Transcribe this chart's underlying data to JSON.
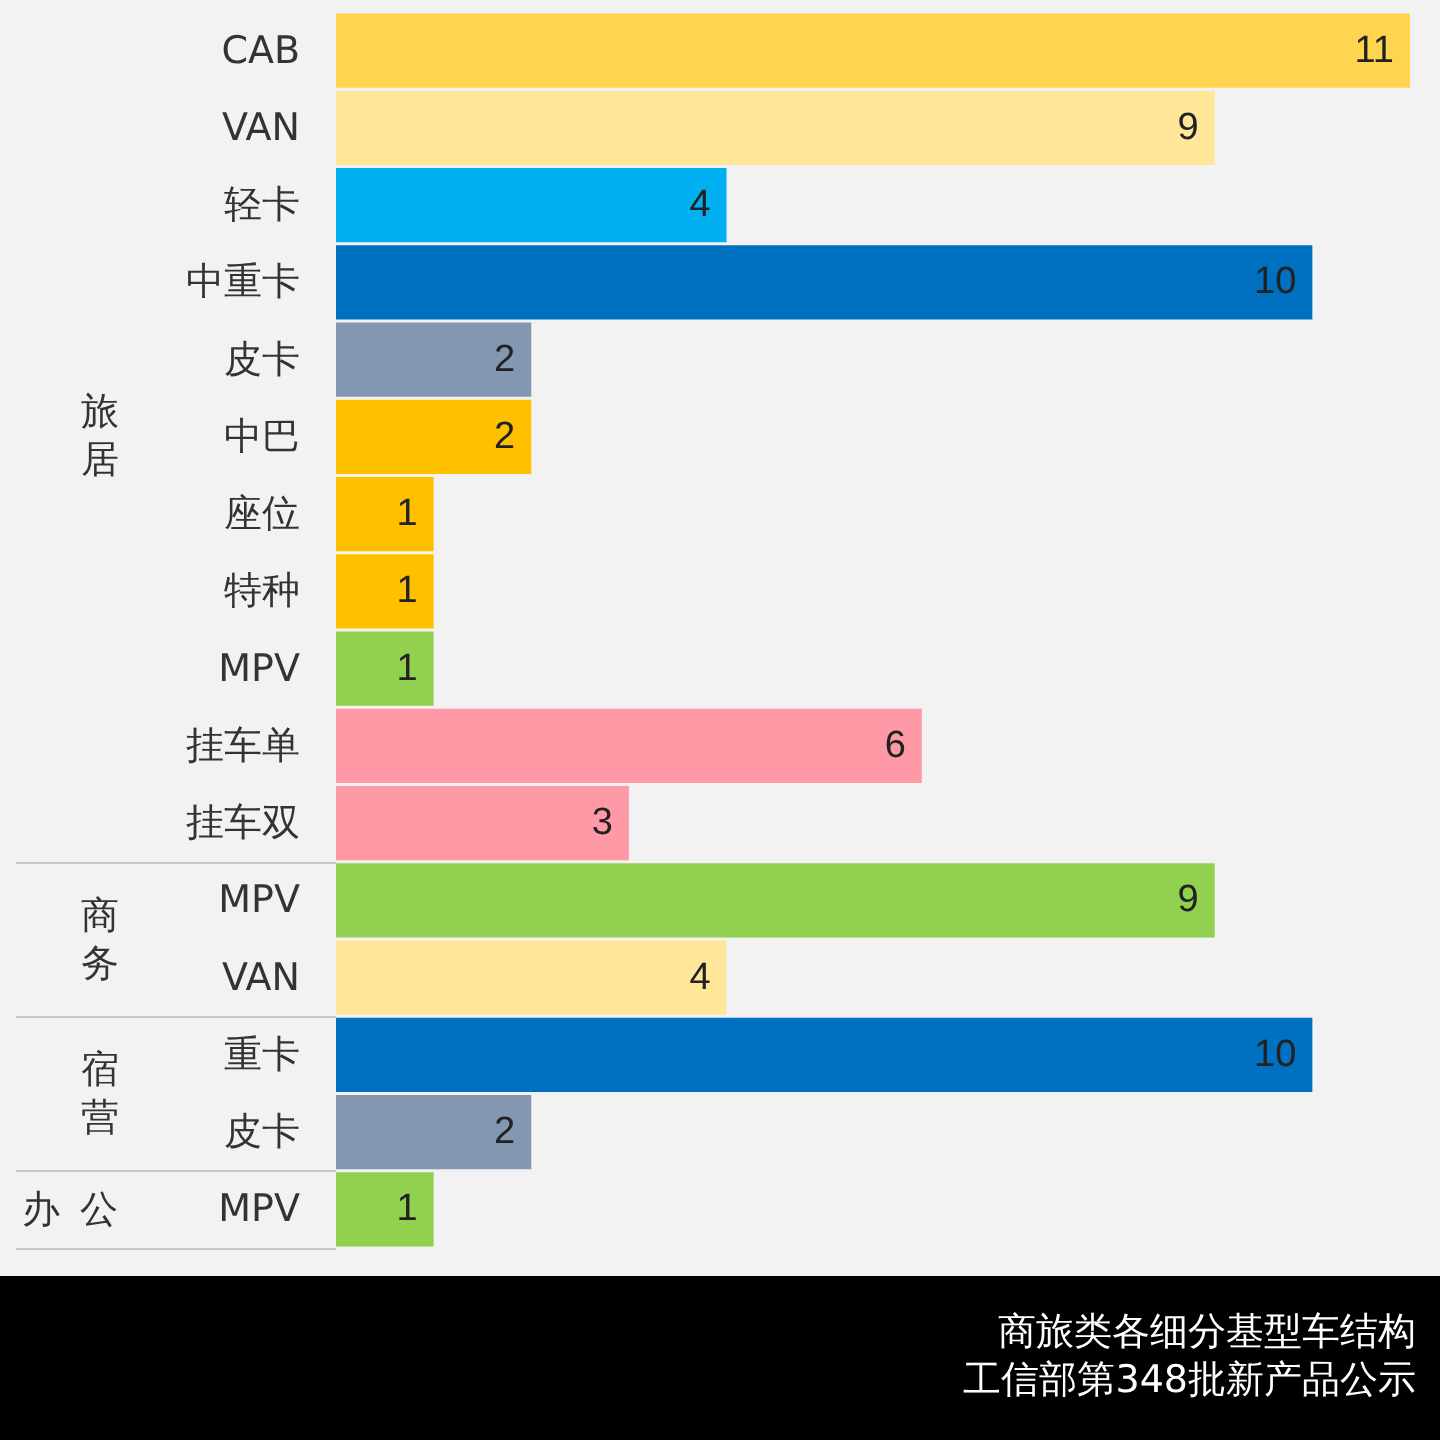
{
  "chart_data": {
    "type": "bar",
    "orientation": "horizontal",
    "title": "商旅类各细分基型车结构",
    "subtitle": "工信部第348批新产品公示",
    "categories": [
      "CAB",
      "VAN",
      "轻卡",
      "中重卡",
      "皮卡",
      "中巴",
      "座位",
      "特种",
      "MPV",
      "挂车单",
      "挂车双",
      "MPV",
      "VAN",
      "重卡",
      "皮卡",
      "MPV"
    ],
    "values": [
      11,
      9,
      4,
      10,
      2,
      2,
      1,
      1,
      1,
      6,
      3,
      9,
      4,
      10,
      2,
      1
    ],
    "colors": [
      "#ffd44f",
      "#ffe699",
      "#00b0f0",
      "#0070c0",
      "#8497b0",
      "#ffc000",
      "#ffc000",
      "#ffc000",
      "#92d050",
      "#ff99a6",
      "#ff99a6",
      "#92d050",
      "#ffe699",
      "#0070c0",
      "#8497b0",
      "#92d050"
    ],
    "annotations": [
      "旅居",
      "商务",
      "宿营",
      "办公"
    ],
    "data_labels": true
  }
}
